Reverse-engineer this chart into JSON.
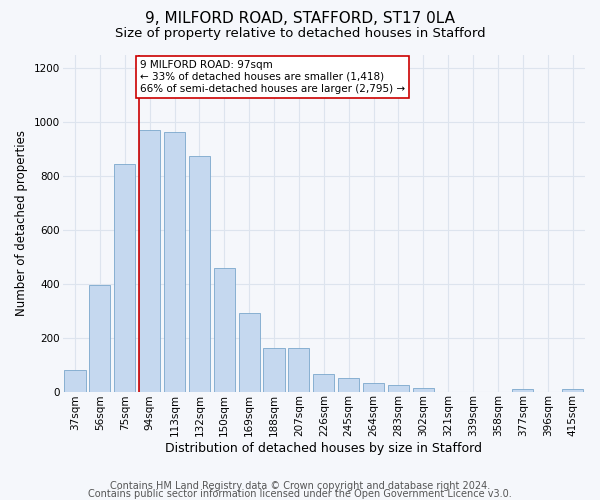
{
  "title1": "9, MILFORD ROAD, STAFFORD, ST17 0LA",
  "title2": "Size of property relative to detached houses in Stafford",
  "xlabel": "Distribution of detached houses by size in Stafford",
  "ylabel": "Number of detached properties",
  "categories": [
    "37sqm",
    "56sqm",
    "75sqm",
    "94sqm",
    "113sqm",
    "132sqm",
    "150sqm",
    "169sqm",
    "188sqm",
    "207sqm",
    "226sqm",
    "245sqm",
    "264sqm",
    "283sqm",
    "302sqm",
    "321sqm",
    "339sqm",
    "358sqm",
    "377sqm",
    "396sqm",
    "415sqm"
  ],
  "values": [
    80,
    395,
    845,
    970,
    965,
    875,
    460,
    290,
    160,
    160,
    65,
    50,
    30,
    25,
    15,
    0,
    0,
    0,
    10,
    0,
    10
  ],
  "bar_color": "#c5d8ef",
  "bar_edge_color": "#7ba7cc",
  "annotation_text": "9 MILFORD ROAD: 97sqm\n← 33% of detached houses are smaller (1,418)\n66% of semi-detached houses are larger (2,795) →",
  "annotation_box_color": "#ffffff",
  "annotation_box_edge": "#cc0000",
  "red_line_x": 3,
  "ylim": [
    0,
    1250
  ],
  "yticks": [
    0,
    200,
    400,
    600,
    800,
    1000,
    1200
  ],
  "footer1": "Contains HM Land Registry data © Crown copyright and database right 2024.",
  "footer2": "Contains public sector information licensed under the Open Government Licence v3.0.",
  "bg_color": "#f5f7fb",
  "plot_bg_color": "#f5f7fb",
  "title1_fontsize": 11,
  "title2_fontsize": 9.5,
  "xlabel_fontsize": 9,
  "ylabel_fontsize": 8.5,
  "tick_fontsize": 7.5,
  "footer_fontsize": 7
}
